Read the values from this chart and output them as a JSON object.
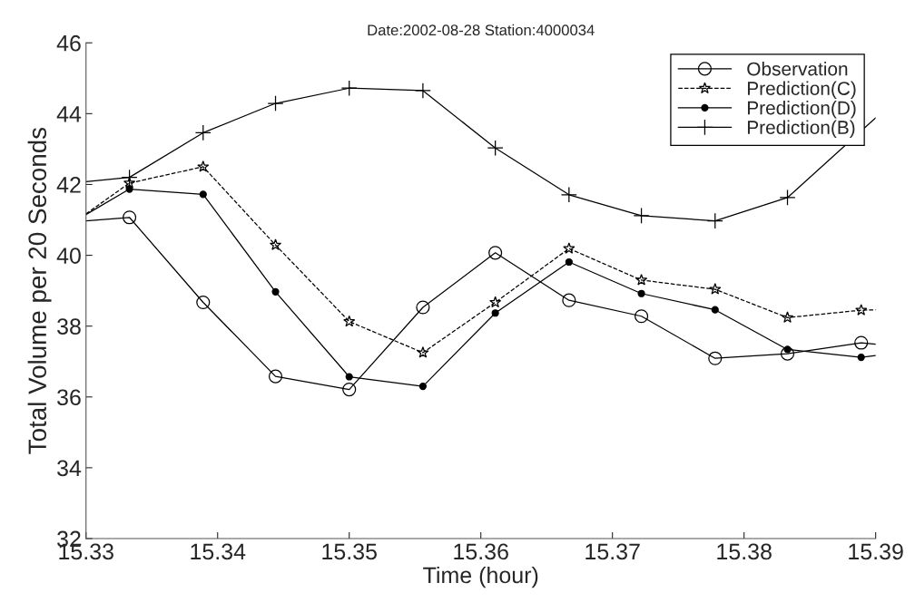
{
  "chart_data": {
    "type": "line",
    "title": "Date:2002-08-28 Station:4000034",
    "xlabel": "Time (hour)",
    "ylabel": "Total Volume per 20 Seconds",
    "x": [
      15.33,
      15.3333,
      15.3389,
      15.3444,
      15.35,
      15.3556,
      15.3611,
      15.3667,
      15.3722,
      15.3778,
      15.3833,
      15.3889,
      15.39
    ],
    "series": [
      {
        "name": "Observation",
        "color": "#000000",
        "marker": "circle",
        "line_style": "solid",
        "values": [
          40.97,
          41.07,
          38.67,
          36.58,
          36.21,
          38.53,
          40.07,
          38.73,
          38.28,
          37.09,
          37.22,
          37.53,
          37.49
        ]
      },
      {
        "name": "Prediction(C)",
        "color": "#000000",
        "marker": "star",
        "line_style": "dashed",
        "values": [
          41.17,
          42.04,
          42.5,
          40.29,
          38.13,
          37.25,
          38.67,
          40.19,
          39.3,
          39.04,
          38.24,
          38.45,
          38.46
        ]
      },
      {
        "name": "Prediction(D)",
        "color": "#000000",
        "marker": "circle",
        "line_style": "solid",
        "values": [
          41.15,
          41.87,
          41.72,
          38.97,
          36.57,
          36.3,
          38.37,
          39.81,
          38.92,
          38.46,
          37.34,
          37.12,
          37.17
        ]
      },
      {
        "name": "Prediction(B)",
        "color": "#000000",
        "marker": "cross",
        "line_style": "solid",
        "x": [
          15.33,
          15.3333,
          15.3389,
          15.3444,
          15.35,
          15.3556,
          15.3611,
          15.3667,
          15.3722,
          15.3778,
          15.3833,
          15.39
        ],
        "values": [
          42.08,
          42.2,
          43.46,
          44.29,
          44.72,
          44.65,
          43.03,
          41.71,
          41.12,
          40.97,
          41.63,
          43.88
        ]
      }
    ],
    "xlim": [
      15.33,
      15.39
    ],
    "xticks": [
      15.33,
      15.34,
      15.35,
      15.36,
      15.37,
      15.38,
      15.39
    ],
    "ylim": [
      32,
      46
    ],
    "yticks": [
      32,
      34,
      36,
      38,
      40,
      42,
      44,
      46
    ],
    "grid": false,
    "legend": "top right"
  }
}
